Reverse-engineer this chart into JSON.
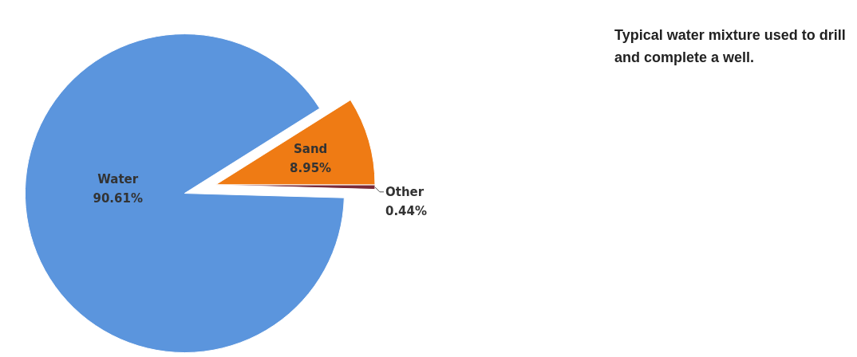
{
  "chart_data": {
    "type": "pie",
    "title": "Typical water mixture used to drill and complete a well.",
    "categories": [
      "Water",
      "Sand",
      "Other"
    ],
    "values": [
      90.61,
      8.95,
      0.44
    ],
    "value_labels": [
      "90.61%",
      "8.95%",
      "0.44%"
    ],
    "colors": [
      "#5b95dd",
      "#ef7b14",
      "#7a2a38"
    ],
    "legend": false
  }
}
